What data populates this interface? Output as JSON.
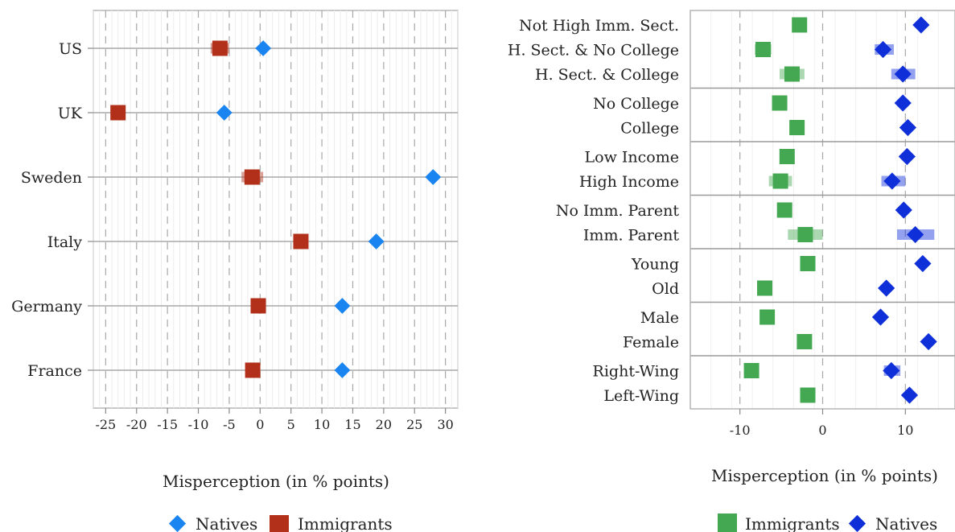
{
  "chart_data": [
    {
      "type": "scatter",
      "orientation": "horizontal",
      "categories": [
        "US",
        "UK",
        "Sweden",
        "Italy",
        "Germany",
        "France"
      ],
      "series": [
        {
          "name": "Natives",
          "color": "#1a84f0",
          "marker": "diamond",
          "values": [
            0.5,
            -5.8,
            28.0,
            18.8,
            13.3,
            13.3
          ],
          "ci": [
            null,
            null,
            null,
            null,
            null,
            null
          ]
        },
        {
          "name": "Immigrants",
          "color": "#b22f1a",
          "marker": "square",
          "values": [
            -6.5,
            -23.0,
            -1.3,
            6.6,
            -0.3,
            -1.2
          ],
          "ci": [
            [
              -8.0,
              -5.0
            ],
            null,
            [
              -3.0,
              0.5
            ],
            null,
            null,
            [
              -2.0,
              -0.5
            ]
          ]
        }
      ],
      "xlabel": "Misperception (in % points)",
      "xlim": [
        -27,
        32
      ],
      "xticks": [
        -25,
        -20,
        -15,
        -10,
        -5,
        0,
        5,
        10,
        15,
        20,
        25,
        30
      ],
      "grid": true,
      "legend_position": "bottom"
    },
    {
      "type": "scatter",
      "orientation": "horizontal",
      "categories": [
        "Not High Imm. Sect.",
        "H. Sect. & No College",
        "H. Sect. & College",
        "No College",
        "College",
        "Low Income",
        "High Income",
        "No Imm. Parent",
        "Imm. Parent",
        "Young",
        "Old",
        "Male",
        "Female",
        "Right-Wing",
        "Left-Wing"
      ],
      "groups": [
        [
          0,
          1,
          2
        ],
        [
          3,
          4
        ],
        [
          5,
          6
        ],
        [
          7,
          8
        ],
        [
          9,
          10
        ],
        [
          11,
          12
        ],
        [
          13,
          14
        ]
      ],
      "series": [
        {
          "name": "Immigrants",
          "color": "#44a852",
          "marker": "square",
          "values": [
            -2.8,
            -7.2,
            -3.7,
            -5.2,
            -3.1,
            -4.3,
            -5.1,
            -4.6,
            -2.1,
            -1.8,
            -7.0,
            -6.7,
            -2.2,
            -8.6,
            -1.8
          ],
          "ci": [
            null,
            [
              -8.2,
              -6.2
            ],
            [
              -5.2,
              -2.2
            ],
            null,
            null,
            null,
            [
              -6.5,
              -3.7
            ],
            null,
            [
              -4.2,
              0.0
            ],
            null,
            null,
            null,
            null,
            null,
            null
          ]
        },
        {
          "name": "Natives",
          "color": "#0f2fd9",
          "marker": "diamond",
          "values": [
            11.9,
            7.3,
            9.7,
            9.7,
            10.3,
            10.2,
            8.4,
            9.8,
            11.2,
            12.1,
            7.7,
            7.0,
            12.8,
            8.3,
            10.5
          ],
          "ci": [
            null,
            [
              6.3,
              8.6
            ],
            [
              8.3,
              11.2
            ],
            null,
            null,
            null,
            [
              7.1,
              10.0
            ],
            null,
            [
              9.0,
              13.5
            ],
            null,
            null,
            null,
            null,
            [
              7.4,
              9.4
            ],
            null
          ]
        }
      ],
      "xlabel": "Misperception (in % points)",
      "xlim": [
        -16,
        16
      ],
      "xticks": [
        -10,
        0,
        10
      ],
      "grid": true,
      "legend_position": "bottom"
    }
  ]
}
